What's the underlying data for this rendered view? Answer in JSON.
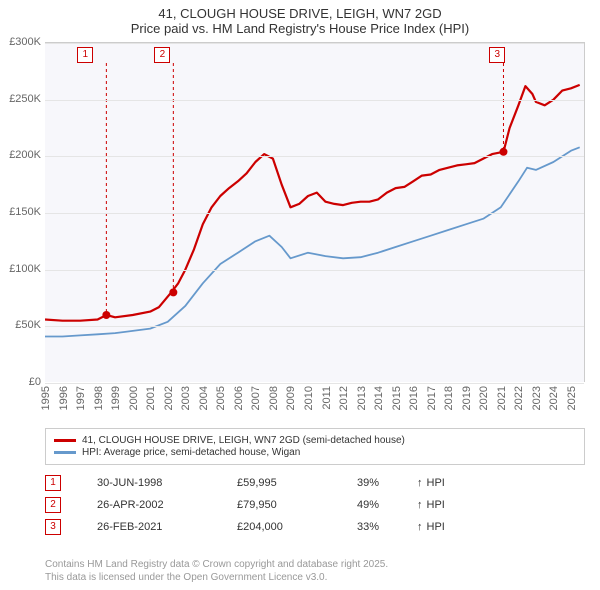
{
  "title": "41, CLOUGH HOUSE DRIVE, LEIGH, WN7 2GD",
  "subtitle": "Price paid vs. HM Land Registry's House Price Index (HPI)",
  "chart": {
    "type": "line",
    "background_color": "#f7f7fb",
    "grid_color": "#e5e5e5",
    "axis_color": "#cccccc",
    "tick_font_size": 11,
    "tick_color": "#666666",
    "xlim": [
      1995,
      2025.8
    ],
    "ylim": [
      0,
      300000
    ],
    "y_ticks": [
      0,
      50000,
      100000,
      150000,
      200000,
      250000,
      300000
    ],
    "y_tick_labels": [
      "£0",
      "£50K",
      "£100K",
      "£150K",
      "£200K",
      "£250K",
      "£300K"
    ],
    "x_ticks": [
      1995,
      1996,
      1997,
      1998,
      1999,
      2000,
      2001,
      2002,
      2003,
      2004,
      2005,
      2006,
      2007,
      2008,
      2009,
      2010,
      2011,
      2012,
      2013,
      2014,
      2015,
      2016,
      2017,
      2018,
      2019,
      2020,
      2021,
      2022,
      2023,
      2024,
      2025
    ],
    "series": [
      {
        "name": "41, CLOUGH HOUSE DRIVE, LEIGH, WN7 2GD (semi-detached house)",
        "color": "#cc0000",
        "line_width": 2.2,
        "data": [
          [
            1995.0,
            56000
          ],
          [
            1996.0,
            55000
          ],
          [
            1997.0,
            55000
          ],
          [
            1998.0,
            56000
          ],
          [
            1998.5,
            59995
          ],
          [
            1999.0,
            58000
          ],
          [
            2000.0,
            60000
          ],
          [
            2001.0,
            63000
          ],
          [
            2001.5,
            67000
          ],
          [
            2002.2,
            79950
          ],
          [
            2002.6,
            88000
          ],
          [
            2003.0,
            100000
          ],
          [
            2003.5,
            118000
          ],
          [
            2004.0,
            140000
          ],
          [
            2004.5,
            155000
          ],
          [
            2005.0,
            165000
          ],
          [
            2005.5,
            172000
          ],
          [
            2006.0,
            178000
          ],
          [
            2006.5,
            185000
          ],
          [
            2007.0,
            195000
          ],
          [
            2007.5,
            202000
          ],
          [
            2008.0,
            198000
          ],
          [
            2008.5,
            175000
          ],
          [
            2009.0,
            155000
          ],
          [
            2009.5,
            158000
          ],
          [
            2010.0,
            165000
          ],
          [
            2010.5,
            168000
          ],
          [
            2011.0,
            160000
          ],
          [
            2011.5,
            158000
          ],
          [
            2012.0,
            157000
          ],
          [
            2012.5,
            159000
          ],
          [
            2013.0,
            160000
          ],
          [
            2013.5,
            160000
          ],
          [
            2014.0,
            162000
          ],
          [
            2014.5,
            168000
          ],
          [
            2015.0,
            172000
          ],
          [
            2015.5,
            173000
          ],
          [
            2016.0,
            178000
          ],
          [
            2016.5,
            183000
          ],
          [
            2017.0,
            184000
          ],
          [
            2017.5,
            188000
          ],
          [
            2018.0,
            190000
          ],
          [
            2018.5,
            192000
          ],
          [
            2019.0,
            193000
          ],
          [
            2019.5,
            194000
          ],
          [
            2020.0,
            198000
          ],
          [
            2020.5,
            202000
          ],
          [
            2021.15,
            204000
          ],
          [
            2021.5,
            225000
          ],
          [
            2022.0,
            245000
          ],
          [
            2022.4,
            262000
          ],
          [
            2022.8,
            255000
          ],
          [
            2023.0,
            248000
          ],
          [
            2023.5,
            245000
          ],
          [
            2024.0,
            250000
          ],
          [
            2024.5,
            258000
          ],
          [
            2025.0,
            260000
          ],
          [
            2025.5,
            263000
          ]
        ]
      },
      {
        "name": "HPI: Average price, semi-detached house, Wigan",
        "color": "#6699cc",
        "line_width": 1.8,
        "data": [
          [
            1995.0,
            41000
          ],
          [
            1996.0,
            41000
          ],
          [
            1997.0,
            42000
          ],
          [
            1998.0,
            43000
          ],
          [
            1999.0,
            44000
          ],
          [
            2000.0,
            46000
          ],
          [
            2001.0,
            48000
          ],
          [
            2002.0,
            54000
          ],
          [
            2003.0,
            68000
          ],
          [
            2004.0,
            88000
          ],
          [
            2005.0,
            105000
          ],
          [
            2006.0,
            115000
          ],
          [
            2007.0,
            125000
          ],
          [
            2007.8,
            130000
          ],
          [
            2008.5,
            120000
          ],
          [
            2009.0,
            110000
          ],
          [
            2010.0,
            115000
          ],
          [
            2011.0,
            112000
          ],
          [
            2012.0,
            110000
          ],
          [
            2013.0,
            111000
          ],
          [
            2014.0,
            115000
          ],
          [
            2015.0,
            120000
          ],
          [
            2016.0,
            125000
          ],
          [
            2017.0,
            130000
          ],
          [
            2018.0,
            135000
          ],
          [
            2019.0,
            140000
          ],
          [
            2020.0,
            145000
          ],
          [
            2021.0,
            155000
          ],
          [
            2022.0,
            178000
          ],
          [
            2022.5,
            190000
          ],
          [
            2023.0,
            188000
          ],
          [
            2024.0,
            195000
          ],
          [
            2025.0,
            205000
          ],
          [
            2025.5,
            208000
          ]
        ]
      }
    ],
    "markers": [
      {
        "label": "1",
        "x": 1998.5,
        "y": 59995,
        "box_x": 1997.3,
        "box_y_top": true
      },
      {
        "label": "2",
        "x": 2002.32,
        "y": 79950,
        "box_x": 2001.7,
        "box_y_top": true
      },
      {
        "label": "3",
        "x": 2021.15,
        "y": 204000,
        "box_x": 2020.8,
        "box_y_top": true
      }
    ],
    "marker_style": {
      "box_border_color": "#cc0000",
      "box_text_color": "#cc0000",
      "box_bg_color": "#ffffff",
      "box_size": 16,
      "box_font_size": 10,
      "dashed_line_color": "#cc0000",
      "dashed_line_dash": "3,3",
      "point_radius": 4,
      "point_fill": "#cc0000"
    }
  },
  "legend": {
    "border_color": "#cccccc",
    "font_size": 10,
    "items": [
      {
        "color": "#cc0000",
        "label": "41, CLOUGH HOUSE DRIVE, LEIGH, WN7 2GD (semi-detached house)"
      },
      {
        "color": "#6699cc",
        "label": "HPI: Average price, semi-detached house, Wigan"
      }
    ]
  },
  "sales": [
    {
      "num": "1",
      "date": "30-JUN-1998",
      "price": "£59,995",
      "pct": "39%",
      "arrow": "↑",
      "suffix": "HPI"
    },
    {
      "num": "2",
      "date": "26-APR-2002",
      "price": "£79,950",
      "pct": "49%",
      "arrow": "↑",
      "suffix": "HPI"
    },
    {
      "num": "3",
      "date": "26-FEB-2021",
      "price": "£204,000",
      "pct": "33%",
      "arrow": "↑",
      "suffix": "HPI"
    }
  ],
  "footer_line1": "Contains HM Land Registry data © Crown copyright and database right 2025.",
  "footer_line2": "This data is licensed under the Open Government Licence v3.0."
}
